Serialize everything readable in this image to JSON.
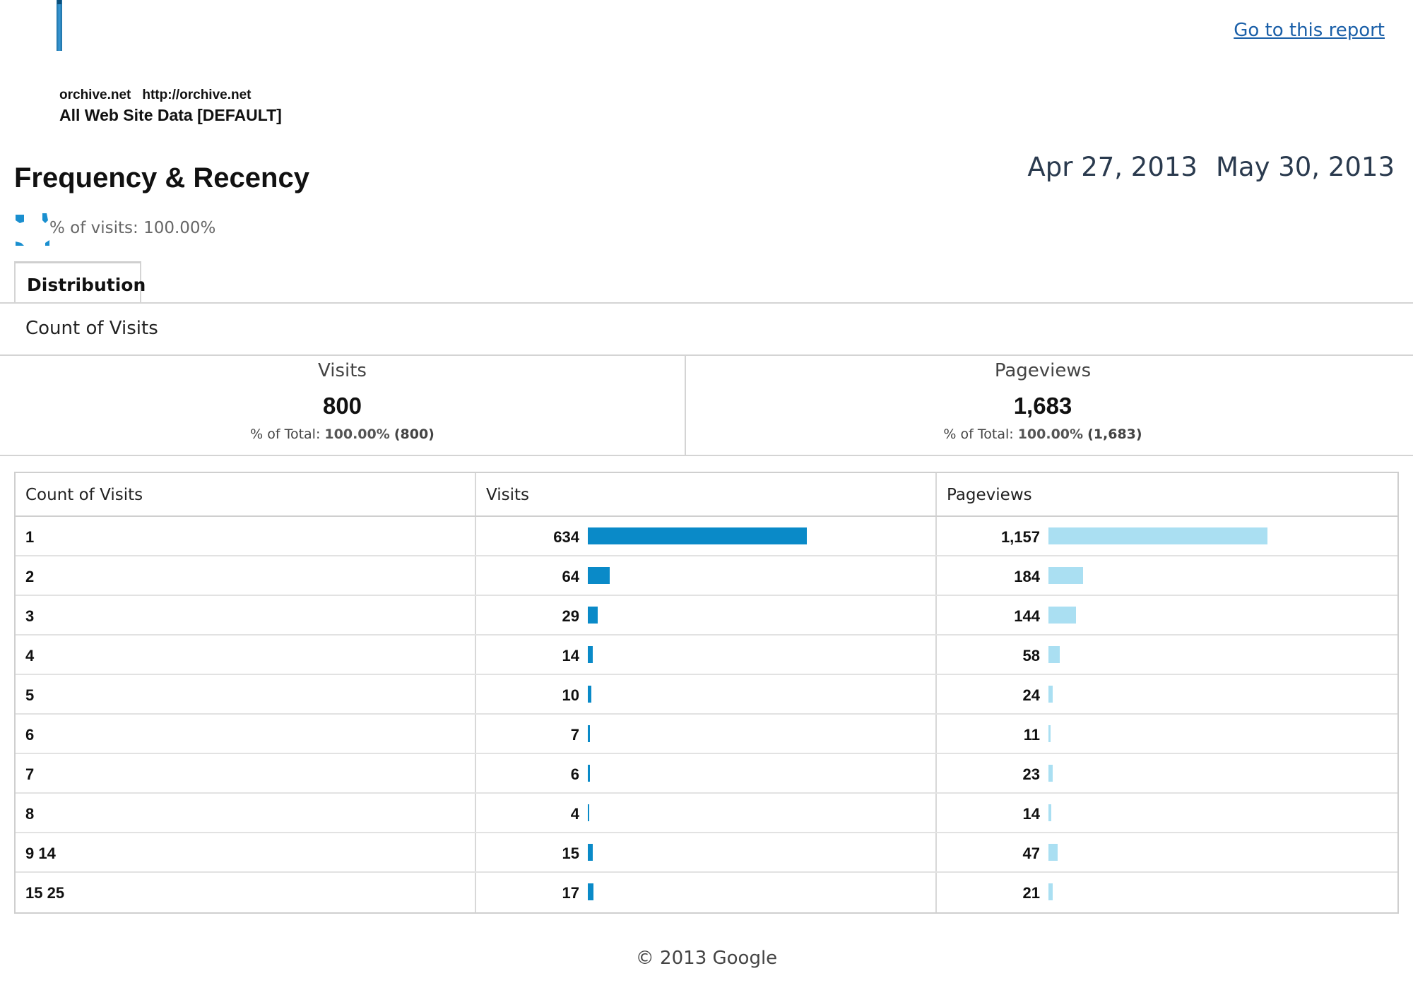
{
  "header": {
    "goto_link": "Go to this report",
    "account_name": "orchive.net",
    "account_url": "http://orchive.net",
    "view_name": "All Web Site Data [DEFAULT]"
  },
  "report": {
    "title": "Frequency & Recency",
    "date_start": "Apr 27, 2013",
    "date_end": "May 30, 2013",
    "segment_text": "% of visits: 100.00%"
  },
  "tabs": [
    {
      "label": "Distribution",
      "active": true
    }
  ],
  "dimension_label": "Count of Visits",
  "scorecards": [
    {
      "name": "Visits",
      "value": "800",
      "pct_label": "% of Total:",
      "pct": "100.00%",
      "total": "(800)"
    },
    {
      "name": "Pageviews",
      "value": "1,683",
      "pct_label": "% of Total:",
      "pct": "100.00%",
      "total": "(1,683)"
    }
  ],
  "table": {
    "columns": [
      "Count of Visits",
      "Visits",
      "Pageviews"
    ],
    "rows": [
      {
        "count": "1",
        "visits": "634",
        "pageviews": "1,157",
        "visits_num": 634,
        "pageviews_num": 1157
      },
      {
        "count": "2",
        "visits": "64",
        "pageviews": "184",
        "visits_num": 64,
        "pageviews_num": 184
      },
      {
        "count": "3",
        "visits": "29",
        "pageviews": "144",
        "visits_num": 29,
        "pageviews_num": 144
      },
      {
        "count": "4",
        "visits": "14",
        "pageviews": "58",
        "visits_num": 14,
        "pageviews_num": 58
      },
      {
        "count": "5",
        "visits": "10",
        "pageviews": "24",
        "visits_num": 10,
        "pageviews_num": 24
      },
      {
        "count": "6",
        "visits": "7",
        "pageviews": "11",
        "visits_num": 7,
        "pageviews_num": 11
      },
      {
        "count": "7",
        "visits": "6",
        "pageviews": "23",
        "visits_num": 6,
        "pageviews_num": 23
      },
      {
        "count": "8",
        "visits": "4",
        "pageviews": "14",
        "visits_num": 4,
        "pageviews_num": 14
      },
      {
        "count": "9 14",
        "visits": "15",
        "pageviews": "47",
        "visits_num": 15,
        "pageviews_num": 47
      },
      {
        "count": "15 25",
        "visits": "17",
        "pageviews": "21",
        "visits_num": 17,
        "pageviews_num": 21
      }
    ]
  },
  "colors": {
    "visits_bar": "#0a8ac8",
    "pageviews_bar": "#aadff2",
    "link": "#1a5fa8"
  },
  "icons": {
    "logo": "analytics-logo-bar",
    "segment": "segment-pie-icon"
  },
  "footer": {
    "copyright": "© 2013 Google"
  }
}
